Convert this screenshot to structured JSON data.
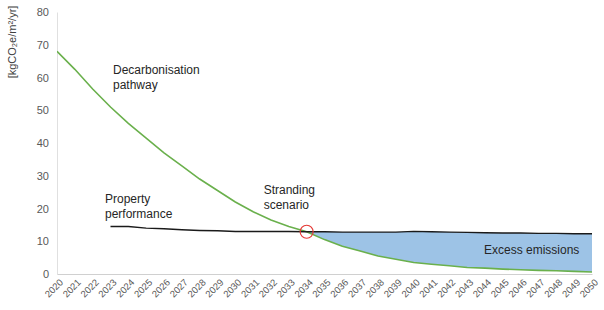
{
  "chart_data": {
    "type": "line",
    "y_label": "[kgCO₂e/m²/yr]",
    "x": [
      2020,
      2021,
      2022,
      2023,
      2024,
      2025,
      2026,
      2027,
      2028,
      2029,
      2030,
      2031,
      2032,
      2033,
      2034,
      2035,
      2036,
      2037,
      2038,
      2039,
      2040,
      2041,
      2042,
      2043,
      2044,
      2045,
      2046,
      2047,
      2048,
      2049,
      2050
    ],
    "series": [
      {
        "name": "Decarbonisation pathway",
        "color": "#6ab04c",
        "values": [
          68,
          62.5,
          56.5,
          51,
          46,
          41.5,
          37,
          33,
          29,
          25.5,
          22,
          19,
          16.5,
          14.5,
          12.9,
          10.5,
          8.5,
          7,
          5.5,
          4.5,
          3.5,
          3,
          2.5,
          2,
          1.8,
          1.5,
          1.3,
          1.1,
          1,
          0.8,
          0.6
        ]
      },
      {
        "name": "Property performance",
        "color": "#1a1a1a",
        "values": [
          null,
          null,
          null,
          14.5,
          14.5,
          14,
          13.8,
          13.5,
          13.3,
          13.2,
          13,
          13,
          13,
          13,
          12.9,
          12.9,
          12.8,
          12.8,
          12.8,
          12.8,
          13,
          12.9,
          12.8,
          12.7,
          12.6,
          12.5,
          12.5,
          12.4,
          12.4,
          12.3,
          12.3
        ]
      }
    ],
    "shaded": {
      "label": "Excess emissions",
      "x_from": 2034,
      "x_to": 2050,
      "color": "#9dc3e6"
    },
    "annotations": [
      {
        "text": "Stranding scenario",
        "x": 2034,
        "y": 12.9,
        "color": "#e53935"
      }
    ],
    "xlim": [
      2020,
      2050
    ],
    "xticks": [
      2020,
      2021,
      2022,
      2023,
      2024,
      2025,
      2026,
      2027,
      2028,
      2029,
      2030,
      2031,
      2032,
      2033,
      2034,
      2035,
      2036,
      2037,
      2038,
      2039,
      2040,
      2041,
      2042,
      2043,
      2044,
      2045,
      2046,
      2047,
      2048,
      2049,
      2050
    ],
    "ylim": [
      0,
      80
    ],
    "yticks": [
      0,
      10,
      20,
      30,
      40,
      50,
      60,
      70,
      80
    ],
    "grid": false
  }
}
